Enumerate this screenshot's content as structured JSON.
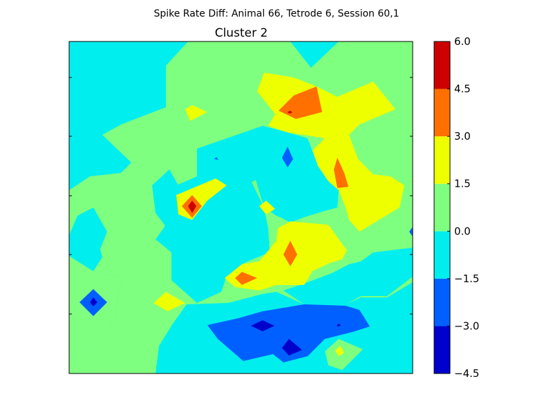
{
  "chart_data": {
    "type": "heatmap",
    "suptitle": "Spike Rate Diff: Animal 66, Tetrode 6, Session 60,1",
    "title": "Cluster 2",
    "xlabel": "",
    "ylabel": "",
    "plot_style": "filled contour",
    "colormap": "jet",
    "levels": [
      -4.5,
      -3.0,
      -1.5,
      0.0,
      1.5,
      3.0,
      4.5,
      6.0
    ],
    "band_colors": [
      "#0000cd",
      "#0060ff",
      "#00eeee",
      "#7fff7f",
      "#eeff00",
      "#ff7000",
      "#cd0000"
    ],
    "colorbar": {
      "ticks": [
        "6.0",
        "4.5",
        "3.0",
        "1.5",
        "0.0",
        "−1.5",
        "−3.0",
        "−4.5"
      ]
    },
    "x_tick_labels": [],
    "y_tick_labels": [],
    "grid": false,
    "legend": "none"
  }
}
